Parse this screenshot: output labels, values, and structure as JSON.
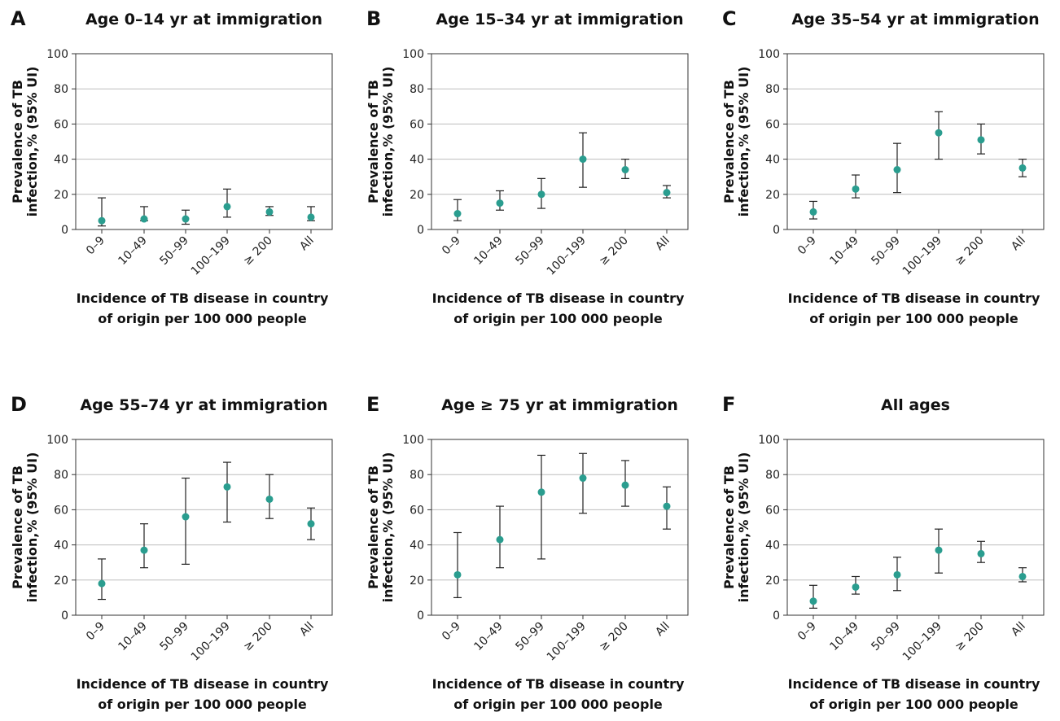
{
  "chart_data": [
    {
      "letter": "A",
      "title": "Age 0–14 yr at immigration",
      "type": "scatter",
      "categories": [
        "0–9",
        "10–49",
        "50–99",
        "100–199",
        "≥ 200",
        "All"
      ],
      "ylabel_line1": "Prevalence of TB",
      "ylabel_line2": "infection,% (95% UI)",
      "xlabel_line1": "Incidence of TB disease in country",
      "xlabel_line2": "of origin per 100 000 people",
      "ylim": [
        0,
        100
      ],
      "yticks": [
        "0",
        "20",
        "40",
        "60",
        "80",
        "100"
      ],
      "grid": true,
      "point_color": "#2a9d8f",
      "values": [
        5,
        6,
        6,
        13,
        10,
        7
      ],
      "ci_low": [
        2,
        5,
        3,
        7,
        8,
        5
      ],
      "ci_high": [
        18,
        13,
        11,
        23,
        13,
        13
      ]
    },
    {
      "letter": "B",
      "title": "Age 15–34 yr at immigration",
      "type": "scatter",
      "categories": [
        "0–9",
        "10–49",
        "50–99",
        "100–199",
        "≥ 200",
        "All"
      ],
      "ylabel_line1": "Prevalence of TB",
      "ylabel_line2": "infection,% (95% UI)",
      "xlabel_line1": "Incidence of TB disease in country",
      "xlabel_line2": "of origin per 100 000 people",
      "ylim": [
        0,
        100
      ],
      "yticks": [
        "0",
        "20",
        "40",
        "60",
        "80",
        "100"
      ],
      "grid": true,
      "point_color": "#2a9d8f",
      "values": [
        9,
        15,
        20,
        40,
        34,
        21
      ],
      "ci_low": [
        5,
        11,
        12,
        24,
        29,
        18
      ],
      "ci_high": [
        17,
        22,
        29,
        55,
        40,
        25
      ]
    },
    {
      "letter": "C",
      "title": "Age 35–54 yr at immigration",
      "type": "scatter",
      "categories": [
        "0–9",
        "10–49",
        "50–99",
        "100–199",
        "≥ 200",
        "All"
      ],
      "ylabel_line1": "Prevalence of TB",
      "ylabel_line2": "infection,% (95% UI)",
      "xlabel_line1": "Incidence of TB disease in country",
      "xlabel_line2": "of origin per 100 000 people",
      "ylim": [
        0,
        100
      ],
      "yticks": [
        "0",
        "20",
        "40",
        "60",
        "80",
        "100"
      ],
      "grid": true,
      "point_color": "#2a9d8f",
      "values": [
        10,
        23,
        34,
        55,
        51,
        35
      ],
      "ci_low": [
        6,
        18,
        21,
        40,
        43,
        30
      ],
      "ci_high": [
        16,
        31,
        49,
        67,
        60,
        40
      ]
    },
    {
      "letter": "D",
      "title": "Age 55–74 yr at immigration",
      "type": "scatter",
      "categories": [
        "0–9",
        "10–49",
        "50–99",
        "100–199",
        "≥ 200",
        "All"
      ],
      "ylabel_line1": "Prevalence of TB",
      "ylabel_line2": "infection,% (95% UI)",
      "xlabel_line1": "Incidence of TB disease in country",
      "xlabel_line2": "of origin per 100 000 people",
      "ylim": [
        0,
        100
      ],
      "yticks": [
        "0",
        "20",
        "40",
        "60",
        "80",
        "100"
      ],
      "grid": true,
      "point_color": "#2a9d8f",
      "values": [
        18,
        37,
        56,
        73,
        66,
        52
      ],
      "ci_low": [
        9,
        27,
        29,
        53,
        55,
        43
      ],
      "ci_high": [
        32,
        52,
        78,
        87,
        80,
        61
      ]
    },
    {
      "letter": "E",
      "title": "Age ≥ 75 yr at immigration",
      "type": "scatter",
      "categories": [
        "0–9",
        "10–49",
        "50–99",
        "100–199",
        "≥ 200",
        "All"
      ],
      "ylabel_line1": "Prevalence of TB",
      "ylabel_line2": "infection,% (95% UI)",
      "xlabel_line1": "Incidence of TB disease in country",
      "xlabel_line2": "of origin per 100 000 people",
      "ylim": [
        0,
        100
      ],
      "yticks": [
        "0",
        "20",
        "40",
        "60",
        "80",
        "100"
      ],
      "grid": true,
      "point_color": "#2a9d8f",
      "values": [
        23,
        43,
        70,
        78,
        74,
        62
      ],
      "ci_low": [
        10,
        27,
        32,
        58,
        62,
        49
      ],
      "ci_high": [
        47,
        62,
        91,
        92,
        88,
        73
      ]
    },
    {
      "letter": "F",
      "title": "All ages",
      "type": "scatter",
      "categories": [
        "0–9",
        "10–49",
        "50–99",
        "100–199",
        "≥ 200",
        "All"
      ],
      "ylabel_line1": "Prevalence of TB",
      "ylabel_line2": "infection,% (95% UI)",
      "xlabel_line1": "Incidence of TB disease in country",
      "xlabel_line2": "of origin per 100 000 people",
      "ylim": [
        0,
        100
      ],
      "yticks": [
        "0",
        "20",
        "40",
        "60",
        "80",
        "100"
      ],
      "grid": true,
      "point_color": "#2a9d8f",
      "values": [
        8,
        16,
        23,
        37,
        35,
        22
      ],
      "ci_low": [
        4,
        12,
        14,
        24,
        30,
        19
      ],
      "ci_high": [
        17,
        22,
        33,
        49,
        42,
        27
      ]
    }
  ]
}
